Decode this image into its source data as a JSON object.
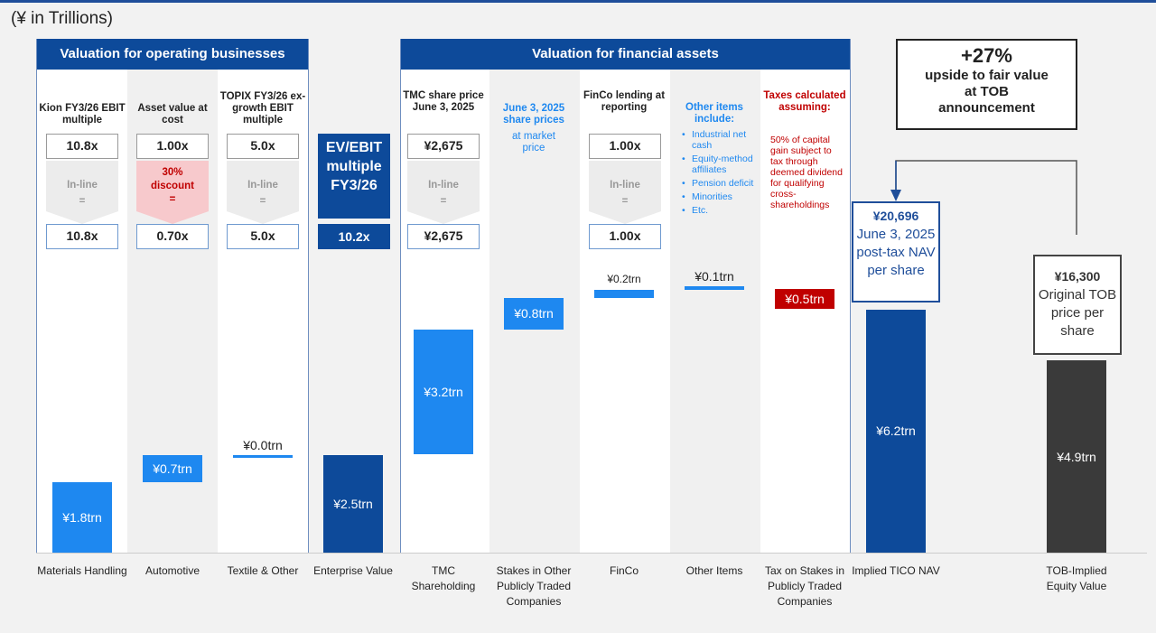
{
  "unit_label": "(¥ in Trillions)",
  "operating": {
    "header": "Valuation for operating businesses",
    "columns": [
      {
        "title": "Kion FY3/26 EBIT multiple",
        "input": "10.8x",
        "adjust": "In-line",
        "eq": "=",
        "output": "10.8x"
      },
      {
        "title": "Asset value at cost",
        "input": "1.00x",
        "adjust": "30% discount",
        "eq": "=",
        "output": "0.70x"
      },
      {
        "title": "TOPIX FY3/26 ex-growth EBIT multiple",
        "input": "5.0x",
        "adjust": "In-line",
        "eq": "=",
        "output": "5.0x"
      }
    ]
  },
  "ev_multiple": {
    "title": "EV/EBIT multiple FY3/26",
    "value": "10.2x"
  },
  "financial": {
    "header": "Valuation for financial assets",
    "tmc": {
      "title": "TMC share price June 3, 2025",
      "input": "¥2,675",
      "adjust": "In-line",
      "eq": "=",
      "output": "¥2,675"
    },
    "stakes": {
      "title": "June 3, 2025 share prices",
      "sub": "at market price"
    },
    "finco": {
      "title": "FinCo lending at reporting",
      "input": "1.00x",
      "adjust": "In-line",
      "eq": "=",
      "output": "1.00x"
    },
    "other": {
      "title": "Other items include:",
      "items": [
        "Industrial net cash",
        "Equity-method affiliates",
        "Pension deficit",
        "Minorities",
        "Etc."
      ]
    },
    "tax": {
      "title": "Taxes calculated assuming:",
      "note": "50% of capital gain subject to tax through deemed dividend for qualifying cross-shareholdings"
    }
  },
  "upside": {
    "value": "+27%",
    "text": "upside to fair value at TOB announcement"
  },
  "nav_callout": {
    "value": "¥20,696",
    "text": "June 3, 2025 post-tax NAV per share"
  },
  "tob_callout": {
    "value": "¥16,300",
    "text": "Original TOB price per share"
  },
  "colors": {
    "dark_blue": "#0d4a9a",
    "light_blue": "#1e88f0",
    "dark_grey": "#3a3a3a",
    "red": "#c00000"
  },
  "chart_data": {
    "type": "waterfall",
    "ylabel": "(¥ in Trillions)",
    "categories": [
      "Materials Handling",
      "Automotive",
      "Textile & Other",
      "Enterprise Value",
      "TMC Shareholding",
      "Stakes in Other Publicly Traded Companies",
      "FinCo",
      "Other Items",
      "Tax on Stakes in Publicly Traded Companies",
      "Implied TICO NAV",
      "TOB-Implied Equity Value"
    ],
    "values": [
      1.8,
      0.7,
      0.0,
      2.5,
      3.2,
      0.8,
      0.2,
      0.1,
      -0.5,
      6.2,
      4.9
    ],
    "kinds": [
      "increment",
      "increment",
      "increment",
      "total",
      "increment",
      "increment",
      "increment",
      "increment",
      "decrement",
      "total",
      "total"
    ],
    "labels": [
      "¥1.8trn",
      "¥0.7trn",
      "¥0.0trn",
      "¥2.5trn",
      "¥3.2trn",
      "¥0.8trn",
      "¥0.2trn",
      "¥0.1trn",
      "¥0.5trn",
      "¥6.2trn",
      "¥4.9trn"
    ],
    "bar_colors": [
      "#1e88f0",
      "#1e88f0",
      "#1e88f0",
      "#0d4a9a",
      "#1e88f0",
      "#1e88f0",
      "#1e88f0",
      "#1e88f0",
      "#c00000",
      "#0d4a9a",
      "#3a3a3a"
    ]
  }
}
